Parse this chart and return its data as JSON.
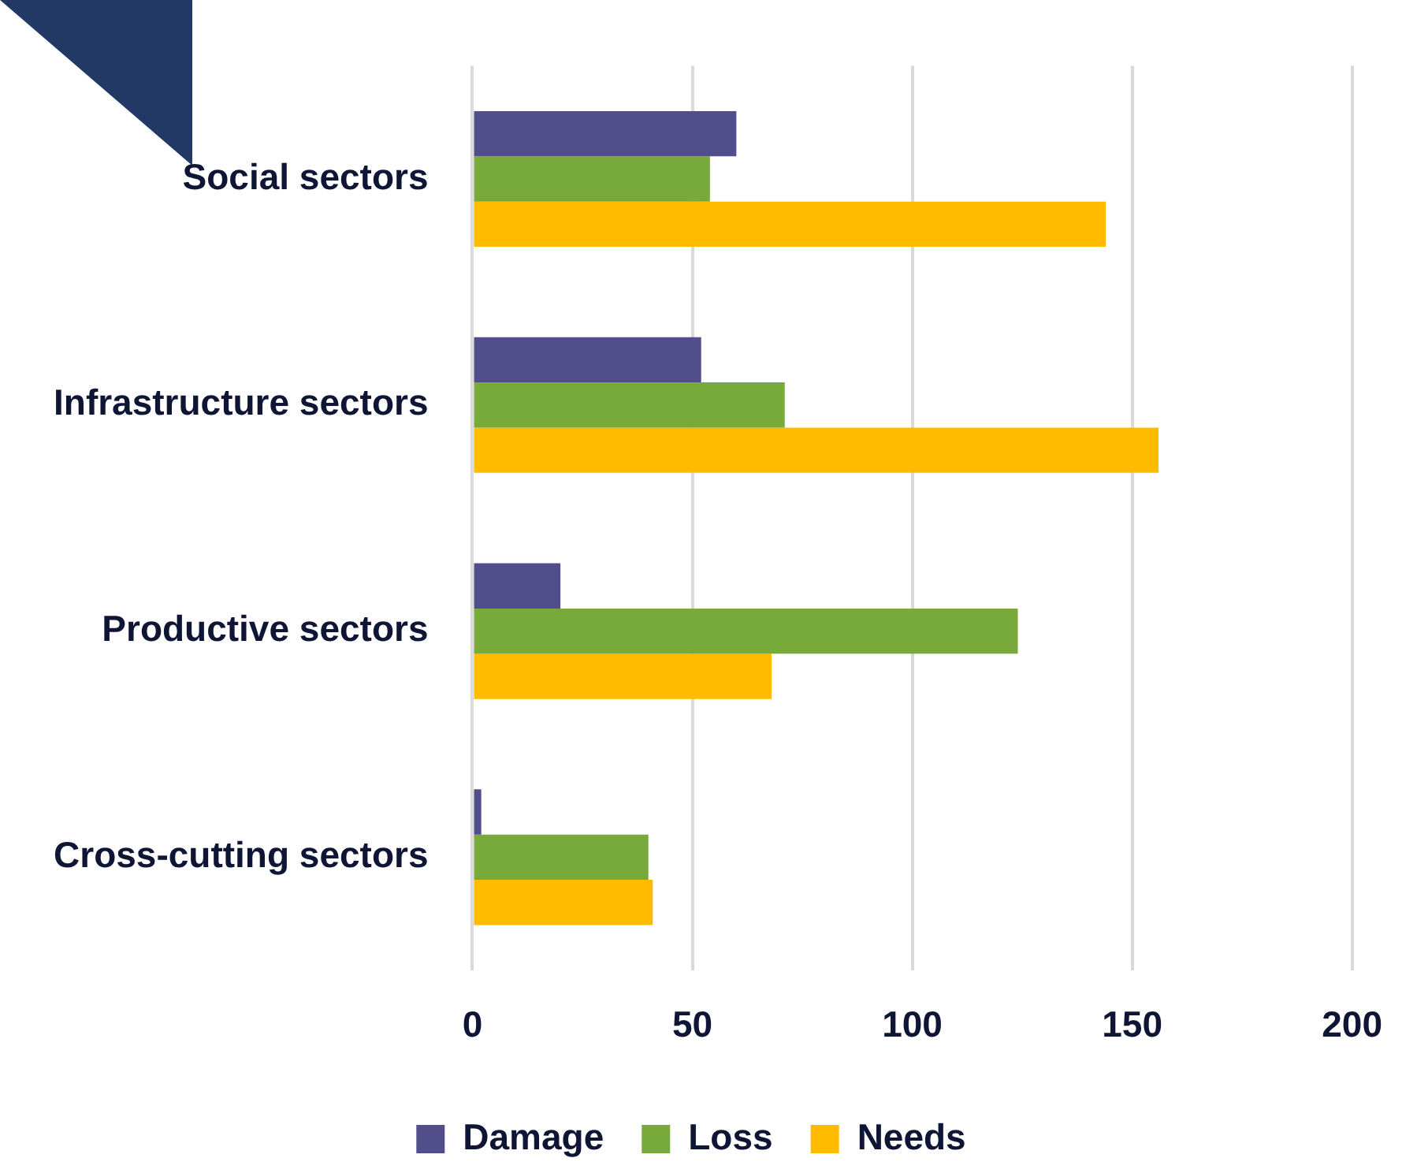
{
  "chart_data": {
    "type": "bar",
    "orientation": "horizontal",
    "categories": [
      "Social sectors",
      "Infrastructure sectors",
      "Productive sectors",
      "Cross-cutting sectors"
    ],
    "series": [
      {
        "name": "Damage",
        "color": "#524e8c",
        "values": [
          60,
          52,
          20,
          2
        ]
      },
      {
        "name": "Loss",
        "color": "#77a93b",
        "values": [
          54,
          71,
          124,
          40
        ]
      },
      {
        "name": "Needs",
        "color": "#ffbb00",
        "values": [
          144,
          156,
          68,
          41
        ]
      }
    ],
    "xlim": [
      0,
      200
    ],
    "xticks": [
      0,
      50,
      100,
      150,
      200
    ],
    "grid": "x",
    "legend": "bottom"
  }
}
